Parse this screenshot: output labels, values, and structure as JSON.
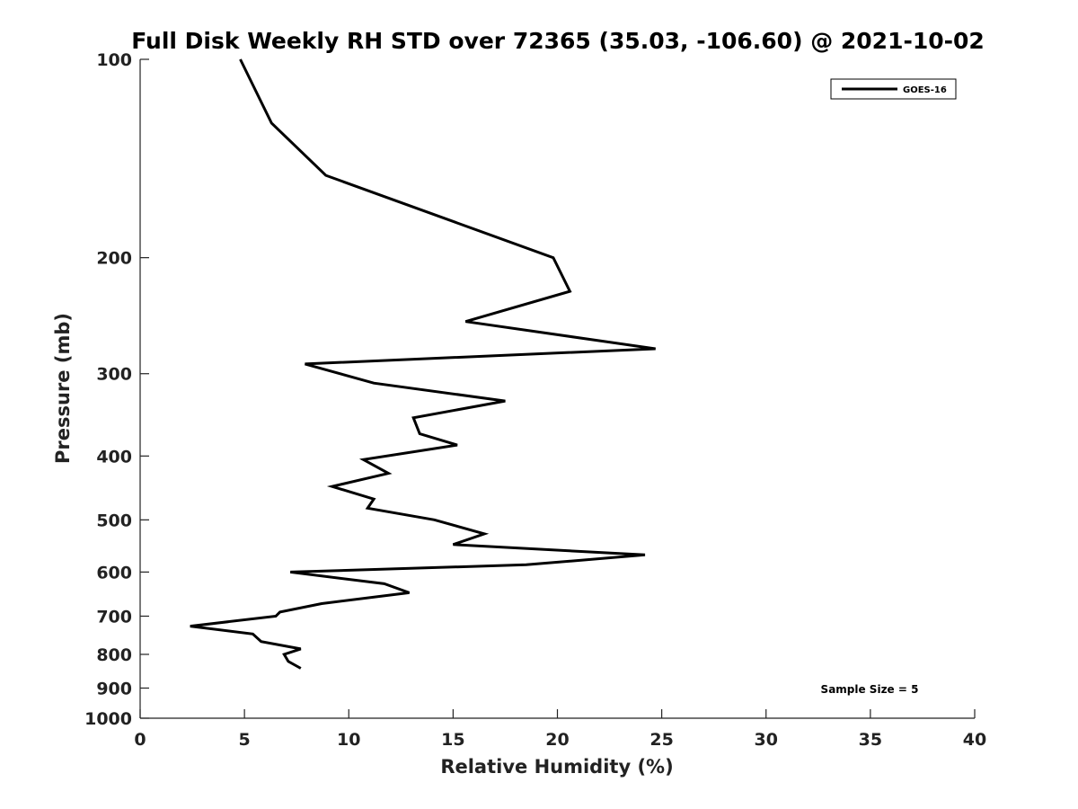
{
  "chart_data": {
    "type": "line",
    "title": "Full Disk Weekly RH STD over 72365 (35.03, -106.60) @ 2021-10-02",
    "xlabel": "Relative Humidity (%)",
    "ylabel": "Pressure (mb)",
    "xlim": [
      0,
      40
    ],
    "ylim": [
      100,
      1000
    ],
    "y_scale": "log",
    "y_reversed": true,
    "grid": false,
    "legend_position": "top-right",
    "xticks": [
      0,
      5,
      10,
      15,
      20,
      25,
      30,
      35,
      40
    ],
    "yticks": [
      100,
      200,
      300,
      400,
      500,
      600,
      700,
      800,
      900,
      1000
    ],
    "annotation": "Sample Size = 5",
    "series": [
      {
        "name": "GOES-16",
        "color": "#000000",
        "points": [
          [
            4.8,
            100
          ],
          [
            6.3,
            125
          ],
          [
            8.9,
            150
          ],
          [
            19.8,
            200
          ],
          [
            20.6,
            225
          ],
          [
            15.6,
            250
          ],
          [
            24.7,
            275
          ],
          [
            7.9,
            290
          ],
          [
            11.2,
            310
          ],
          [
            17.5,
            330
          ],
          [
            13.1,
            350
          ],
          [
            13.4,
            370
          ],
          [
            15.2,
            385
          ],
          [
            10.7,
            405
          ],
          [
            11.9,
            425
          ],
          [
            9.2,
            445
          ],
          [
            11.2,
            465
          ],
          [
            10.9,
            480
          ],
          [
            14.1,
            500
          ],
          [
            16.5,
            525
          ],
          [
            15.0,
            545
          ],
          [
            24.2,
            565
          ],
          [
            18.5,
            585
          ],
          [
            7.2,
            600
          ],
          [
            11.7,
            625
          ],
          [
            12.9,
            645
          ],
          [
            8.7,
            670
          ],
          [
            6.7,
            690
          ],
          [
            6.5,
            700
          ],
          [
            2.4,
            725
          ],
          [
            5.4,
            745
          ],
          [
            5.8,
            765
          ],
          [
            7.7,
            785
          ],
          [
            6.9,
            800
          ],
          [
            7.1,
            820
          ],
          [
            7.7,
            840
          ]
        ]
      }
    ]
  }
}
